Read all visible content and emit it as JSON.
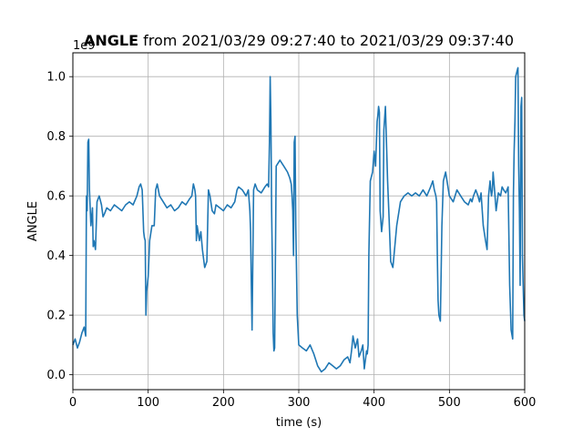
{
  "chart_data": {
    "type": "line",
    "title_bold": "ANGLE",
    "title_rest": " from 2021/03/29 09:27:40 to 2021/03/29 09:37:40",
    "xlabel": "time (s)",
    "ylabel": "ANGLE",
    "offset_text": "1e9",
    "xlim": [
      0,
      600
    ],
    "ylim": [
      -0.05,
      1.08
    ],
    "xticks": [
      0,
      100,
      200,
      300,
      400,
      500,
      600
    ],
    "xtick_labels": [
      "0",
      "100",
      "200",
      "300",
      "400",
      "500",
      "600"
    ],
    "yticks": [
      0.0,
      0.2,
      0.4,
      0.6,
      0.8,
      1.0
    ],
    "ytick_labels": [
      "0.0",
      "0.2",
      "0.4",
      "0.6",
      "0.8",
      "1.0"
    ],
    "grid": true,
    "series": [
      {
        "color": "#1f77b4",
        "x": [
          0,
          3,
          6,
          9,
          12,
          15,
          17,
          18,
          19,
          20,
          21,
          22,
          24,
          26,
          27,
          28,
          30,
          32,
          35,
          38,
          40,
          42,
          45,
          50,
          55,
          60,
          65,
          70,
          75,
          80,
          85,
          88,
          90,
          92,
          94,
          95,
          96,
          97,
          98,
          100,
          102,
          105,
          108,
          110,
          112,
          115,
          120,
          125,
          130,
          135,
          140,
          145,
          150,
          155,
          158,
          160,
          162,
          163,
          164,
          165,
          168,
          170,
          172,
          175,
          178,
          180,
          182,
          185,
          188,
          190,
          195,
          200,
          205,
          210,
          215,
          218,
          220,
          225,
          230,
          233,
          235,
          236,
          237,
          238,
          240,
          242,
          245,
          250,
          255,
          258,
          260,
          261,
          262,
          263,
          264,
          265,
          266,
          267,
          268,
          270,
          275,
          280,
          285,
          288,
          290,
          291,
          292,
          293,
          294,
          295,
          296,
          297,
          298,
          300,
          305,
          310,
          315,
          320,
          325,
          330,
          335,
          340,
          345,
          350,
          355,
          360,
          365,
          368,
          370,
          372,
          375,
          378,
          380,
          383,
          385,
          387,
          390,
          391,
          392,
          393,
          395,
          398,
          400,
          402,
          404,
          405,
          406,
          407,
          408,
          410,
          412,
          413,
          415,
          418,
          420,
          422,
          425,
          430,
          435,
          440,
          445,
          450,
          455,
          460,
          465,
          470,
          475,
          478,
          480,
          482,
          483,
          484,
          485,
          486,
          488,
          490,
          492,
          495,
          500,
          505,
          510,
          515,
          520,
          525,
          528,
          530,
          532,
          535,
          538,
          540,
          542,
          545,
          548,
          550,
          552,
          554,
          555,
          556,
          557,
          558,
          560,
          562,
          565,
          568,
          570,
          572,
          575,
          578,
          580,
          582,
          584,
          585,
          586,
          587,
          588,
          590,
          591,
          592,
          593,
          594,
          595,
          596,
          597,
          598,
          599,
          600
        ],
        "y": [
          0.1,
          0.12,
          0.09,
          0.11,
          0.14,
          0.16,
          0.13,
          0.6,
          0.55,
          0.78,
          0.79,
          0.62,
          0.5,
          0.56,
          0.43,
          0.45,
          0.42,
          0.58,
          0.6,
          0.57,
          0.53,
          0.54,
          0.56,
          0.55,
          0.57,
          0.56,
          0.55,
          0.57,
          0.58,
          0.57,
          0.6,
          0.63,
          0.64,
          0.62,
          0.48,
          0.46,
          0.45,
          0.2,
          0.28,
          0.33,
          0.45,
          0.5,
          0.5,
          0.62,
          0.64,
          0.6,
          0.58,
          0.56,
          0.57,
          0.55,
          0.56,
          0.58,
          0.57,
          0.59,
          0.6,
          0.64,
          0.62,
          0.6,
          0.45,
          0.5,
          0.45,
          0.48,
          0.42,
          0.36,
          0.38,
          0.62,
          0.6,
          0.55,
          0.54,
          0.57,
          0.56,
          0.55,
          0.57,
          0.56,
          0.58,
          0.62,
          0.63,
          0.62,
          0.6,
          0.62,
          0.55,
          0.48,
          0.3,
          0.15,
          0.62,
          0.64,
          0.62,
          0.61,
          0.63,
          0.64,
          0.63,
          0.78,
          1.0,
          0.85,
          0.55,
          0.35,
          0.14,
          0.08,
          0.09,
          0.7,
          0.72,
          0.7,
          0.68,
          0.66,
          0.64,
          0.6,
          0.55,
          0.4,
          0.78,
          0.8,
          0.5,
          0.35,
          0.2,
          0.1,
          0.09,
          0.08,
          0.1,
          0.07,
          0.03,
          0.01,
          0.02,
          0.04,
          0.03,
          0.02,
          0.03,
          0.05,
          0.06,
          0.04,
          0.08,
          0.13,
          0.09,
          0.12,
          0.06,
          0.08,
          0.1,
          0.02,
          0.08,
          0.07,
          0.1,
          0.4,
          0.65,
          0.68,
          0.75,
          0.7,
          0.85,
          0.87,
          0.9,
          0.88,
          0.55,
          0.48,
          0.53,
          0.82,
          0.9,
          0.65,
          0.52,
          0.38,
          0.36,
          0.5,
          0.58,
          0.6,
          0.61,
          0.6,
          0.61,
          0.6,
          0.62,
          0.6,
          0.63,
          0.65,
          0.62,
          0.6,
          0.58,
          0.4,
          0.25,
          0.2,
          0.18,
          0.5,
          0.65,
          0.68,
          0.6,
          0.58,
          0.62,
          0.6,
          0.58,
          0.57,
          0.59,
          0.58,
          0.6,
          0.62,
          0.6,
          0.58,
          0.61,
          0.5,
          0.45,
          0.42,
          0.6,
          0.65,
          0.62,
          0.6,
          0.62,
          0.68,
          0.62,
          0.55,
          0.61,
          0.6,
          0.63,
          0.62,
          0.61,
          0.63,
          0.3,
          0.15,
          0.12,
          0.6,
          0.75,
          0.85,
          1.0,
          1.02,
          1.03,
          0.7,
          0.55,
          0.3,
          0.9,
          0.93,
          0.4,
          0.3,
          0.2,
          0.18
        ]
      }
    ]
  }
}
